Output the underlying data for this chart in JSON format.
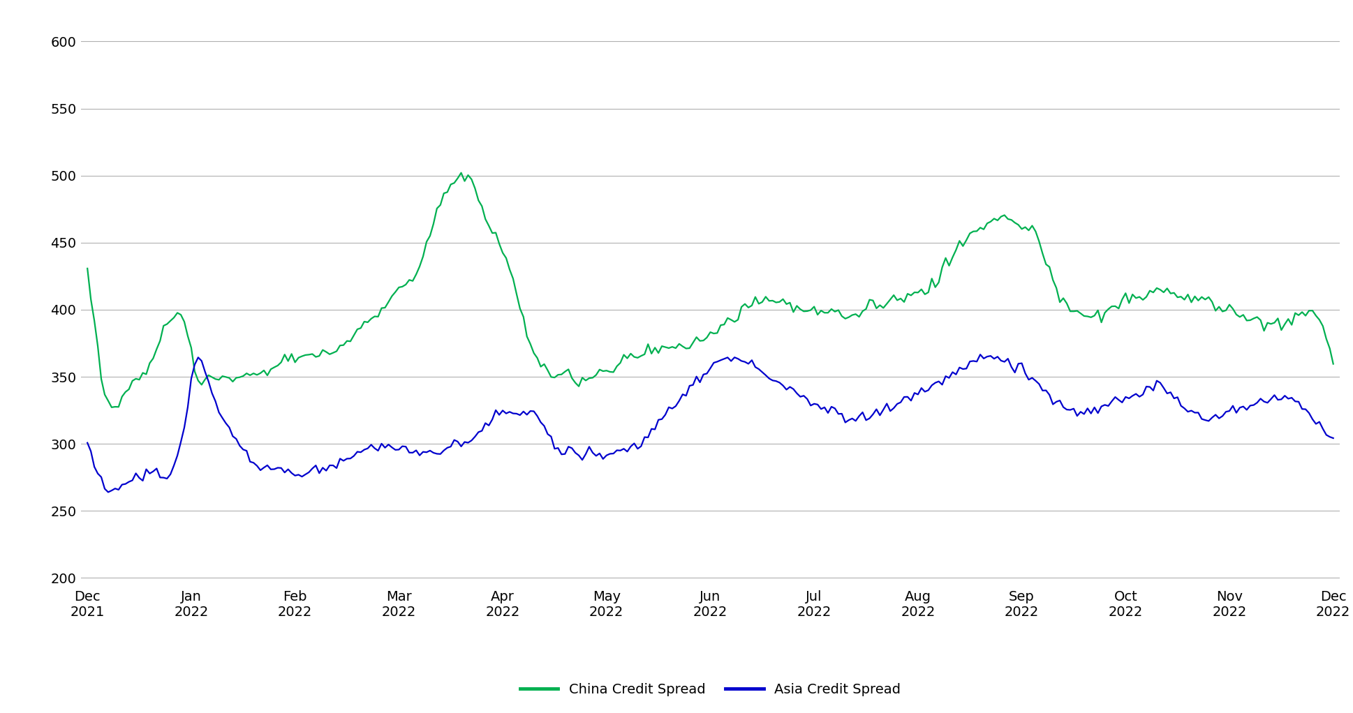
{
  "china_color": "#00b050",
  "asia_color": "#0000cd",
  "background_color": "#ffffff",
  "grid_color": "#b0b0b0",
  "yticks": [
    200,
    250,
    300,
    350,
    400,
    450,
    500,
    550,
    600
  ],
  "ylim": [
    195,
    615
  ],
  "xlabel_months": [
    "Dec\n2021",
    "Jan\n2022",
    "Feb\n2022",
    "Mar\n2022",
    "Apr\n2022",
    "May\n2022",
    "Jun\n2022",
    "Jul\n2022",
    "Aug\n2022",
    "Sep\n2022",
    "Oct\n2022",
    "Nov\n2022",
    "Dec\n2022"
  ],
  "legend_china": "China Credit Spread",
  "legend_asia": "Asia Credit Spread",
  "line_width": 1.6,
  "legend_fontsize": 14,
  "tick_fontsize": 14,
  "china_keypoints_x": [
    0,
    2,
    5,
    10,
    15,
    18,
    22,
    25,
    28,
    31,
    36,
    40,
    45,
    50,
    55,
    60,
    65,
    70,
    75,
    80,
    85,
    90,
    95,
    100,
    104,
    108,
    112,
    116,
    120,
    125,
    130,
    135,
    140,
    145,
    150,
    155,
    160,
    165,
    170,
    175,
    180,
    185,
    190,
    195,
    200,
    205,
    210,
    215,
    220,
    225,
    230,
    235,
    240,
    245,
    250,
    255,
    260,
    265,
    270,
    275,
    280,
    285,
    290,
    295,
    300,
    305,
    310,
    315,
    320,
    325,
    330,
    335,
    340,
    345,
    350,
    355,
    360
  ],
  "china_keypoints_y": [
    430,
    390,
    340,
    333,
    350,
    358,
    385,
    395,
    390,
    355,
    350,
    348,
    350,
    352,
    360,
    365,
    365,
    370,
    375,
    390,
    400,
    415,
    430,
    465,
    490,
    500,
    492,
    462,
    445,
    400,
    365,
    352,
    348,
    350,
    355,
    362,
    368,
    370,
    373,
    375,
    380,
    390,
    400,
    408,
    405,
    403,
    400,
    398,
    395,
    400,
    405,
    410,
    415,
    420,
    440,
    455,
    465,
    468,
    462,
    450,
    415,
    400,
    395,
    400,
    408,
    410,
    412,
    410,
    408,
    404,
    400,
    395,
    390,
    390,
    395,
    395,
    360
  ],
  "asia_keypoints_x": [
    0,
    2,
    5,
    8,
    12,
    15,
    20,
    25,
    28,
    31,
    35,
    40,
    45,
    50,
    55,
    60,
    65,
    70,
    75,
    80,
    85,
    90,
    95,
    100,
    104,
    108,
    112,
    116,
    120,
    125,
    130,
    135,
    140,
    145,
    150,
    155,
    160,
    165,
    170,
    175,
    180,
    185,
    190,
    195,
    200,
    205,
    210,
    215,
    220,
    225,
    230,
    235,
    240,
    245,
    250,
    255,
    260,
    265,
    270,
    275,
    280,
    285,
    290,
    295,
    300,
    305,
    310,
    315,
    320,
    325,
    330,
    335,
    340,
    345,
    350,
    355,
    360
  ],
  "asia_keypoints_y": [
    300,
    285,
    268,
    265,
    270,
    275,
    279,
    283,
    315,
    360,
    345,
    315,
    296,
    285,
    280,
    278,
    280,
    283,
    290,
    295,
    298,
    295,
    293,
    295,
    298,
    300,
    305,
    316,
    322,
    323,
    320,
    300,
    295,
    293,
    292,
    295,
    300,
    315,
    330,
    345,
    358,
    364,
    360,
    355,
    345,
    338,
    330,
    325,
    320,
    320,
    325,
    332,
    338,
    344,
    353,
    360,
    365,
    362,
    355,
    345,
    330,
    325,
    323,
    330,
    335,
    340,
    345,
    330,
    322,
    318,
    325,
    330,
    332,
    335,
    330,
    318,
    302
  ],
  "n_points": 361
}
